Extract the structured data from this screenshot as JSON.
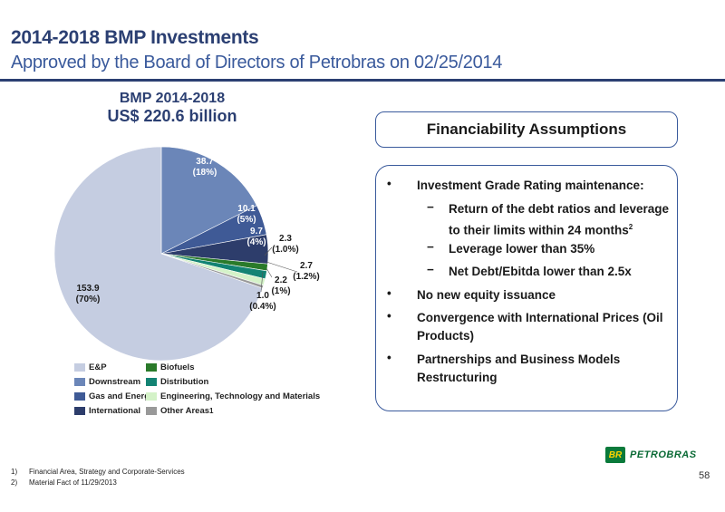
{
  "header": {
    "title": "2014-2018 BMP Investments",
    "subtitle": "Approved by the Board of Directors of Petrobras on 02/25/2014"
  },
  "chart_data": {
    "type": "pie",
    "title": "BMP 2014-2018",
    "subtitle": "US$ 220.6 billion",
    "slices": [
      {
        "name": "Downstream",
        "value": 38.7,
        "pct": "(18%)",
        "color": "#6b86b8"
      },
      {
        "name": "Gas and Energy",
        "value": 10.1,
        "pct": "(5%)",
        "color": "#3f5a96"
      },
      {
        "name": "International",
        "value": 9.7,
        "pct": "(4%)",
        "color": "#2d3d6b"
      },
      {
        "name": "Biofuels",
        "value": 2.3,
        "pct": "(1.0%)",
        "color": "#2a7a2a"
      },
      {
        "name": "Distribution",
        "value": 2.7,
        "pct": "(1.2%)",
        "color": "#138373"
      },
      {
        "name": "Engineering, Technology and Materials",
        "value": 2.2,
        "pct": "(1%)",
        "color": "#d4f2c8"
      },
      {
        "name": "Other Areas",
        "value": 1.0,
        "pct": "(0.4%)",
        "color": "#999999"
      },
      {
        "name": "E&P",
        "value": 153.9,
        "pct": "(70%)",
        "color": "#c5cde1"
      }
    ],
    "legend": [
      {
        "label": "E&P",
        "color": "#c5cde1"
      },
      {
        "label": "Biofuels",
        "color": "#2a7a2a"
      },
      {
        "label": "Downstream",
        "color": "#6b86b8"
      },
      {
        "label": "Distribution",
        "color": "#138373"
      },
      {
        "label": "Gas and Energy",
        "color": "#3f5a96"
      },
      {
        "label": "Engineering, Technology and Materials",
        "color": "#d4f2c8"
      },
      {
        "label": "International",
        "color": "#2d3d6b"
      },
      {
        "label": "Other Areas",
        "sup": "1",
        "color": "#999999"
      }
    ]
  },
  "assumptions": {
    "heading": "Financiability Assumptions",
    "bullets": [
      {
        "text": "Investment Grade Rating maintenance:",
        "subs": [
          {
            "text": "Return of the debt ratios and leverage to their limits within 24 months",
            "sup": "2"
          },
          {
            "text": "Leverage lower than 35%"
          },
          {
            "text": "Net Debt/Ebitda lower than 2.5x"
          }
        ]
      },
      {
        "text": "No new equity issuance"
      },
      {
        "text": "Convergence with International Prices (Oil Products)"
      },
      {
        "text": "Partnerships and Business Models Restructuring"
      }
    ],
    "bullet_symbol": "•",
    "dash_symbol": "−"
  },
  "footnotes": [
    {
      "num": "1)",
      "text": "Financial Area, Strategy and Corporate-Services"
    },
    {
      "num": "2)",
      "text": "Material Fact of 11/29/2013"
    }
  ],
  "logo": {
    "mark": "BR",
    "text": "PETROBRAS"
  },
  "page_number": "58"
}
